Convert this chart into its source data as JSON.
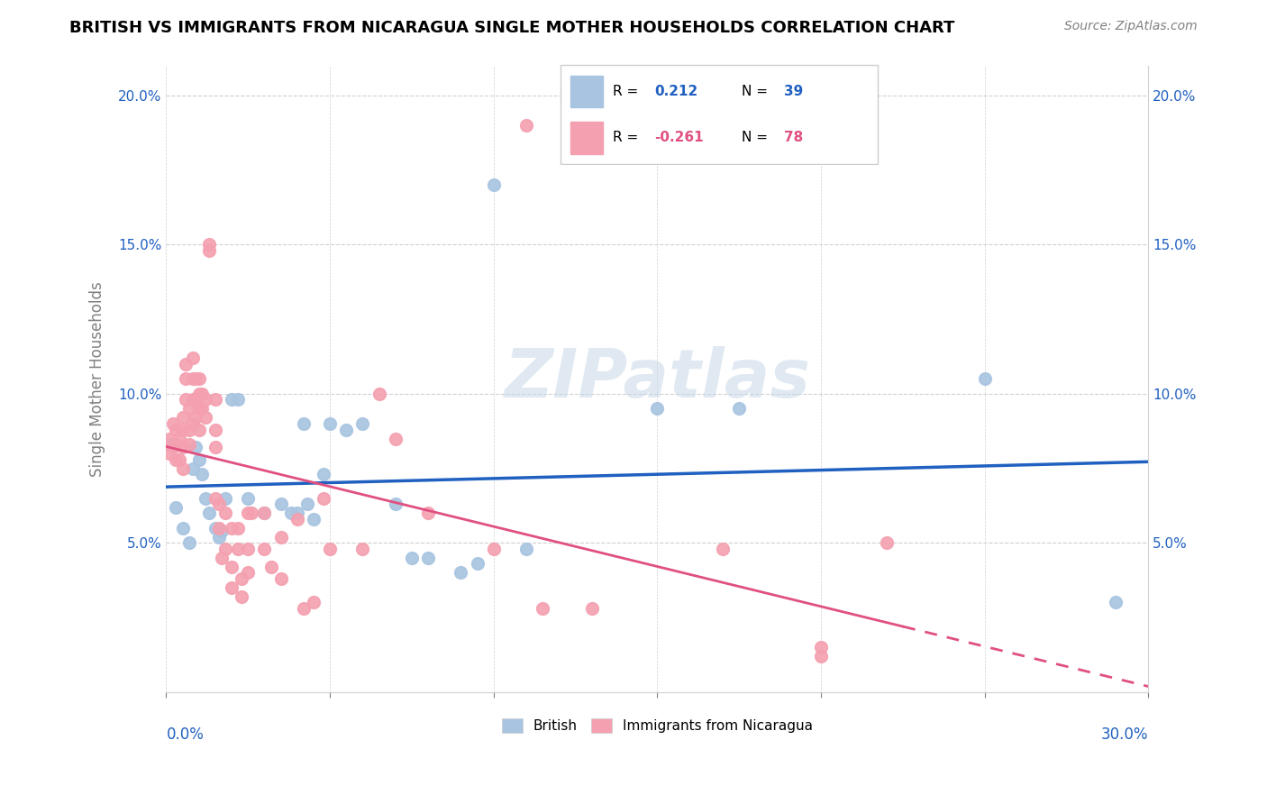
{
  "title": "BRITISH VS IMMIGRANTS FROM NICARAGUA SINGLE MOTHER HOUSEHOLDS CORRELATION CHART",
  "source": "Source: ZipAtlas.com",
  "ylabel": "Single Mother Households",
  "watermark": "ZIPatlas",
  "xlim": [
    0.0,
    0.3
  ],
  "ylim": [
    0.0,
    0.21
  ],
  "yticks": [
    0.05,
    0.1,
    0.15,
    0.2
  ],
  "ytick_labels": [
    "5.0%",
    "10.0%",
    "15.0%",
    "20.0%"
  ],
  "legend_british_R": "0.212",
  "legend_british_N": "39",
  "legend_nicaragua_R": "-0.261",
  "legend_nicaragua_N": "78",
  "british_color": "#a8c4e0",
  "nicaragua_color": "#f4a0b0",
  "british_line_color": "#2060c0",
  "nicaragua_line_color": "#e05080",
  "british_points": [
    [
      0.001,
      0.083
    ],
    [
      0.003,
      0.062
    ],
    [
      0.005,
      0.055
    ],
    [
      0.007,
      0.05
    ],
    [
      0.008,
      0.075
    ],
    [
      0.009,
      0.082
    ],
    [
      0.01,
      0.078
    ],
    [
      0.011,
      0.073
    ],
    [
      0.012,
      0.065
    ],
    [
      0.013,
      0.06
    ],
    [
      0.015,
      0.055
    ],
    [
      0.016,
      0.052
    ],
    [
      0.017,
      0.054
    ],
    [
      0.018,
      0.065
    ],
    [
      0.02,
      0.098
    ],
    [
      0.022,
      0.098
    ],
    [
      0.025,
      0.065
    ],
    [
      0.03,
      0.06
    ],
    [
      0.035,
      0.063
    ],
    [
      0.038,
      0.06
    ],
    [
      0.04,
      0.06
    ],
    [
      0.042,
      0.09
    ],
    [
      0.043,
      0.063
    ],
    [
      0.045,
      0.058
    ],
    [
      0.048,
      0.073
    ],
    [
      0.05,
      0.09
    ],
    [
      0.055,
      0.088
    ],
    [
      0.06,
      0.09
    ],
    [
      0.07,
      0.063
    ],
    [
      0.075,
      0.045
    ],
    [
      0.08,
      0.045
    ],
    [
      0.09,
      0.04
    ],
    [
      0.095,
      0.043
    ],
    [
      0.1,
      0.17
    ],
    [
      0.11,
      0.048
    ],
    [
      0.15,
      0.095
    ],
    [
      0.175,
      0.095
    ],
    [
      0.25,
      0.105
    ],
    [
      0.29,
      0.03
    ]
  ],
  "nicaragua_points": [
    [
      0.001,
      0.085
    ],
    [
      0.001,
      0.08
    ],
    [
      0.002,
      0.09
    ],
    [
      0.002,
      0.082
    ],
    [
      0.003,
      0.088
    ],
    [
      0.003,
      0.083
    ],
    [
      0.003,
      0.078
    ],
    [
      0.004,
      0.085
    ],
    [
      0.004,
      0.078
    ],
    [
      0.005,
      0.092
    ],
    [
      0.005,
      0.088
    ],
    [
      0.005,
      0.082
    ],
    [
      0.005,
      0.075
    ],
    [
      0.006,
      0.11
    ],
    [
      0.006,
      0.105
    ],
    [
      0.006,
      0.098
    ],
    [
      0.007,
      0.095
    ],
    [
      0.007,
      0.088
    ],
    [
      0.007,
      0.083
    ],
    [
      0.008,
      0.112
    ],
    [
      0.008,
      0.105
    ],
    [
      0.008,
      0.098
    ],
    [
      0.008,
      0.09
    ],
    [
      0.009,
      0.105
    ],
    [
      0.009,
      0.098
    ],
    [
      0.009,
      0.092
    ],
    [
      0.01,
      0.105
    ],
    [
      0.01,
      0.1
    ],
    [
      0.01,
      0.095
    ],
    [
      0.01,
      0.088
    ],
    [
      0.011,
      0.1
    ],
    [
      0.011,
      0.095
    ],
    [
      0.012,
      0.098
    ],
    [
      0.012,
      0.092
    ],
    [
      0.013,
      0.15
    ],
    [
      0.013,
      0.148
    ],
    [
      0.015,
      0.098
    ],
    [
      0.015,
      0.088
    ],
    [
      0.015,
      0.082
    ],
    [
      0.015,
      0.065
    ],
    [
      0.016,
      0.063
    ],
    [
      0.016,
      0.055
    ],
    [
      0.017,
      0.045
    ],
    [
      0.018,
      0.06
    ],
    [
      0.018,
      0.048
    ],
    [
      0.02,
      0.055
    ],
    [
      0.02,
      0.042
    ],
    [
      0.02,
      0.035
    ],
    [
      0.022,
      0.055
    ],
    [
      0.022,
      0.048
    ],
    [
      0.023,
      0.038
    ],
    [
      0.023,
      0.032
    ],
    [
      0.025,
      0.06
    ],
    [
      0.025,
      0.048
    ],
    [
      0.025,
      0.04
    ],
    [
      0.026,
      0.06
    ],
    [
      0.03,
      0.06
    ],
    [
      0.03,
      0.048
    ],
    [
      0.032,
      0.042
    ],
    [
      0.035,
      0.052
    ],
    [
      0.035,
      0.038
    ],
    [
      0.04,
      0.058
    ],
    [
      0.042,
      0.028
    ],
    [
      0.045,
      0.03
    ],
    [
      0.048,
      0.065
    ],
    [
      0.05,
      0.048
    ],
    [
      0.06,
      0.048
    ],
    [
      0.065,
      0.1
    ],
    [
      0.07,
      0.085
    ],
    [
      0.08,
      0.06
    ],
    [
      0.1,
      0.048
    ],
    [
      0.11,
      0.19
    ],
    [
      0.115,
      0.028
    ],
    [
      0.13,
      0.028
    ],
    [
      0.17,
      0.048
    ],
    [
      0.2,
      0.015
    ],
    [
      0.2,
      0.012
    ],
    [
      0.22,
      0.05
    ]
  ]
}
